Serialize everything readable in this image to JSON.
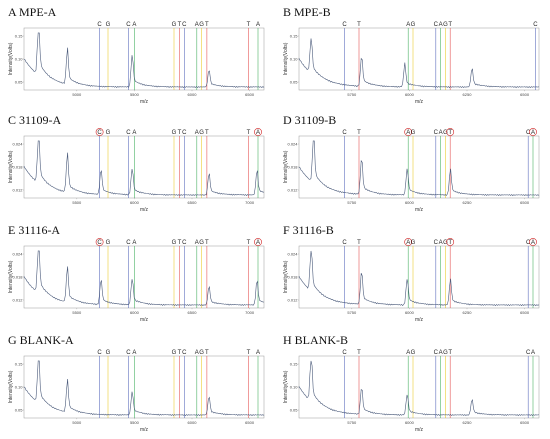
{
  "chart_data": [
    {
      "id": "A",
      "title": "A  MPE-A",
      "type": "line",
      "xlabel": "m/z",
      "ylabel": "Intensity(Volts)",
      "x_ticks": [
        "5000",
        "5500",
        "6000",
        "6500"
      ],
      "y_ticks": [
        "0.15",
        "0.10",
        "0.05"
      ],
      "markers": [
        {
          "label": "C",
          "x": 0.315,
          "color": "#3a4fb0"
        },
        {
          "label": "G",
          "x": 0.35,
          "color": "#e8c200"
        },
        {
          "label": "C",
          "x": 0.435,
          "color": "#3a4fb0"
        },
        {
          "label": "A",
          "x": 0.46,
          "color": "#20a040"
        },
        {
          "label": "G",
          "x": 0.625,
          "color": "#e8c200"
        },
        {
          "label": "T",
          "x": 0.648,
          "color": "#e03030"
        },
        {
          "label": "C",
          "x": 0.668,
          "color": "#3a4fb0"
        },
        {
          "label": "A",
          "x": 0.72,
          "color": "#20a040"
        },
        {
          "label": "G",
          "x": 0.74,
          "color": "#e8c200"
        },
        {
          "label": "T",
          "x": 0.762,
          "color": "#e03030"
        },
        {
          "label": "T",
          "x": 0.935,
          "color": "#e03030"
        },
        {
          "label": "A",
          "x": 0.975,
          "color": "#20a040"
        }
      ],
      "circled": [],
      "peaks": [
        {
          "x": 0.06,
          "h": 0.95
        },
        {
          "x": 0.18,
          "h": 0.55
        },
        {
          "x": 0.45,
          "h": 0.55
        },
        {
          "x": 0.77,
          "h": 0.28
        }
      ]
    },
    {
      "id": "B",
      "title": "B  MPE-B",
      "type": "line",
      "xlabel": "m/z",
      "ylabel": "Intensity(Volts)",
      "x_ticks": [
        "5750",
        "6000",
        "6250",
        "6500"
      ],
      "y_ticks": [
        "0.15",
        "0.10",
        "0.05"
      ],
      "markers": [
        {
          "label": "C",
          "x": 0.19,
          "color": "#3a4fb0"
        },
        {
          "label": "T",
          "x": 0.25,
          "color": "#e03030"
        },
        {
          "label": "A",
          "x": 0.455,
          "color": "#20a040"
        },
        {
          "label": "G",
          "x": 0.475,
          "color": "#e8c200"
        },
        {
          "label": "C",
          "x": 0.57,
          "color": "#3a4fb0"
        },
        {
          "label": "A",
          "x": 0.59,
          "color": "#20a040"
        },
        {
          "label": "G",
          "x": 0.61,
          "color": "#e8c200"
        },
        {
          "label": "T",
          "x": 0.63,
          "color": "#e03030"
        },
        {
          "label": "C",
          "x": 0.985,
          "color": "#3a4fb0"
        }
      ],
      "circled": [],
      "peaks": [
        {
          "x": 0.05,
          "h": 0.6
        },
        {
          "x": 0.26,
          "h": 0.5
        },
        {
          "x": 0.44,
          "h": 0.35
        },
        {
          "x": 0.72,
          "h": 0.3
        }
      ]
    },
    {
      "id": "C",
      "title": "C  31109-A",
      "type": "line",
      "xlabel": "m/z",
      "ylabel": "Intensity(Volts)",
      "x_ticks": [
        "5500",
        "6000",
        "6500",
        "7000"
      ],
      "y_ticks": [
        "0.024",
        "0.018",
        "0.012"
      ],
      "markers": [
        {
          "label": "C",
          "x": 0.315,
          "color": "#3a4fb0"
        },
        {
          "label": "G",
          "x": 0.35,
          "color": "#e8c200"
        },
        {
          "label": "C",
          "x": 0.435,
          "color": "#3a4fb0"
        },
        {
          "label": "A",
          "x": 0.46,
          "color": "#20a040"
        },
        {
          "label": "G",
          "x": 0.625,
          "color": "#e8c200"
        },
        {
          "label": "T",
          "x": 0.648,
          "color": "#e03030"
        },
        {
          "label": "C",
          "x": 0.668,
          "color": "#3a4fb0"
        },
        {
          "label": "A",
          "x": 0.72,
          "color": "#20a040"
        },
        {
          "label": "G",
          "x": 0.74,
          "color": "#e8c200"
        },
        {
          "label": "T",
          "x": 0.762,
          "color": "#e03030"
        },
        {
          "label": "T",
          "x": 0.935,
          "color": "#e03030"
        },
        {
          "label": "A",
          "x": 0.975,
          "color": "#20a040"
        }
      ],
      "circled": [
        0,
        11
      ],
      "peaks": [
        {
          "x": 0.06,
          "h": 0.85
        },
        {
          "x": 0.18,
          "h": 0.6
        },
        {
          "x": 0.32,
          "h": 0.4
        },
        {
          "x": 0.45,
          "h": 0.45
        },
        {
          "x": 0.77,
          "h": 0.35
        },
        {
          "x": 0.97,
          "h": 0.4
        }
      ]
    },
    {
      "id": "D",
      "title": "D  31109-B",
      "type": "line",
      "xlabel": "m/z",
      "ylabel": "Intensity(Volts)",
      "x_ticks": [
        "5750",
        "6000",
        "6250",
        "6500"
      ],
      "y_ticks": [
        "0.024",
        "0.018",
        "0.012"
      ],
      "markers": [
        {
          "label": "C",
          "x": 0.19,
          "color": "#3a4fb0"
        },
        {
          "label": "T",
          "x": 0.25,
          "color": "#e03030"
        },
        {
          "label": "A",
          "x": 0.455,
          "color": "#20a040"
        },
        {
          "label": "G",
          "x": 0.475,
          "color": "#e8c200"
        },
        {
          "label": "C",
          "x": 0.57,
          "color": "#3a4fb0"
        },
        {
          "label": "A",
          "x": 0.59,
          "color": "#20a040"
        },
        {
          "label": "G",
          "x": 0.61,
          "color": "#e8c200"
        },
        {
          "label": "T",
          "x": 0.63,
          "color": "#e03030"
        },
        {
          "label": "C",
          "x": 0.955,
          "color": "#3a4fb0"
        },
        {
          "label": "A",
          "x": 0.975,
          "color": "#20a040"
        }
      ],
      "circled": [
        2,
        7,
        9
      ],
      "peaks": [
        {
          "x": 0.06,
          "h": 0.8
        },
        {
          "x": 0.26,
          "h": 0.6
        },
        {
          "x": 0.45,
          "h": 0.45
        },
        {
          "x": 0.63,
          "h": 0.4
        }
      ]
    },
    {
      "id": "E",
      "title": "E  31116-A",
      "type": "line",
      "xlabel": "m/z",
      "ylabel": "Intensity(Volts)",
      "x_ticks": [
        "5500",
        "6000",
        "6500",
        "7000"
      ],
      "y_ticks": [
        "0.024",
        "0.018",
        "0.012"
      ],
      "markers": [
        {
          "label": "C",
          "x": 0.315,
          "color": "#3a4fb0"
        },
        {
          "label": "G",
          "x": 0.35,
          "color": "#e8c200"
        },
        {
          "label": "C",
          "x": 0.435,
          "color": "#3a4fb0"
        },
        {
          "label": "A",
          "x": 0.46,
          "color": "#20a040"
        },
        {
          "label": "G",
          "x": 0.625,
          "color": "#e8c200"
        },
        {
          "label": "T",
          "x": 0.648,
          "color": "#e03030"
        },
        {
          "label": "C",
          "x": 0.668,
          "color": "#3a4fb0"
        },
        {
          "label": "A",
          "x": 0.72,
          "color": "#20a040"
        },
        {
          "label": "G",
          "x": 0.74,
          "color": "#e8c200"
        },
        {
          "label": "T",
          "x": 0.762,
          "color": "#e03030"
        },
        {
          "label": "T",
          "x": 0.935,
          "color": "#e03030"
        },
        {
          "label": "A",
          "x": 0.975,
          "color": "#20a040"
        }
      ],
      "circled": [
        0,
        11
      ],
      "peaks": [
        {
          "x": 0.06,
          "h": 0.9
        },
        {
          "x": 0.18,
          "h": 0.55
        },
        {
          "x": 0.32,
          "h": 0.4
        },
        {
          "x": 0.45,
          "h": 0.45
        },
        {
          "x": 0.77,
          "h": 0.3
        },
        {
          "x": 0.97,
          "h": 0.4
        }
      ]
    },
    {
      "id": "F",
      "title": "F  31116-B",
      "type": "line",
      "xlabel": "m/z",
      "ylabel": "Intensity(Volts)",
      "x_ticks": [
        "5750",
        "6000",
        "6250",
        "6500"
      ],
      "y_ticks": [
        "0.024",
        "0.018",
        "0.012"
      ],
      "markers": [
        {
          "label": "C",
          "x": 0.19,
          "color": "#3a4fb0"
        },
        {
          "label": "T",
          "x": 0.25,
          "color": "#e03030"
        },
        {
          "label": "A",
          "x": 0.455,
          "color": "#20a040"
        },
        {
          "label": "G",
          "x": 0.475,
          "color": "#e8c200"
        },
        {
          "label": "C",
          "x": 0.57,
          "color": "#3a4fb0"
        },
        {
          "label": "A",
          "x": 0.59,
          "color": "#20a040"
        },
        {
          "label": "G",
          "x": 0.61,
          "color": "#e8c200"
        },
        {
          "label": "T",
          "x": 0.63,
          "color": "#e03030"
        },
        {
          "label": "C",
          "x": 0.955,
          "color": "#3a4fb0"
        },
        {
          "label": "A",
          "x": 0.975,
          "color": "#20a040"
        }
      ],
      "circled": [
        2,
        7,
        9
      ],
      "peaks": [
        {
          "x": 0.05,
          "h": 0.75
        },
        {
          "x": 0.26,
          "h": 0.55
        },
        {
          "x": 0.45,
          "h": 0.45
        },
        {
          "x": 0.63,
          "h": 0.4
        }
      ]
    },
    {
      "id": "G",
      "title": "G  BLANK-A",
      "type": "line",
      "xlabel": "m/z",
      "ylabel": "Intensity(Volts)",
      "x_ticks": [
        "5000",
        "5500",
        "6000",
        "6500"
      ],
      "y_ticks": [
        "0.15",
        "0.10",
        "0.05"
      ],
      "markers": [
        {
          "label": "C",
          "x": 0.315,
          "color": "#3a4fb0"
        },
        {
          "label": "G",
          "x": 0.35,
          "color": "#e8c200"
        },
        {
          "label": "C",
          "x": 0.435,
          "color": "#3a4fb0"
        },
        {
          "label": "A",
          "x": 0.46,
          "color": "#20a040"
        },
        {
          "label": "G",
          "x": 0.625,
          "color": "#e8c200"
        },
        {
          "label": "T",
          "x": 0.648,
          "color": "#e03030"
        },
        {
          "label": "C",
          "x": 0.668,
          "color": "#3a4fb0"
        },
        {
          "label": "A",
          "x": 0.72,
          "color": "#20a040"
        },
        {
          "label": "G",
          "x": 0.74,
          "color": "#e8c200"
        },
        {
          "label": "T",
          "x": 0.762,
          "color": "#e03030"
        },
        {
          "label": "T",
          "x": 0.935,
          "color": "#e03030"
        },
        {
          "label": "A",
          "x": 0.975,
          "color": "#20a040"
        }
      ],
      "circled": [],
      "peaks": [
        {
          "x": 0.06,
          "h": 0.8
        },
        {
          "x": 0.18,
          "h": 0.5
        },
        {
          "x": 0.45,
          "h": 0.4
        },
        {
          "x": 0.77,
          "h": 0.3
        }
      ]
    },
    {
      "id": "H",
      "title": "H  BLANK-B",
      "type": "line",
      "xlabel": "m/z",
      "ylabel": "Intensity(Volts)",
      "x_ticks": [
        "5750",
        "6000",
        "6250",
        "6500"
      ],
      "y_ticks": [
        "0.15",
        "0.10",
        "0.05"
      ],
      "markers": [
        {
          "label": "C",
          "x": 0.19,
          "color": "#3a4fb0"
        },
        {
          "label": "T",
          "x": 0.25,
          "color": "#e03030"
        },
        {
          "label": "A",
          "x": 0.455,
          "color": "#20a040"
        },
        {
          "label": "G",
          "x": 0.475,
          "color": "#e8c200"
        },
        {
          "label": "C",
          "x": 0.57,
          "color": "#3a4fb0"
        },
        {
          "label": "A",
          "x": 0.59,
          "color": "#20a040"
        },
        {
          "label": "G",
          "x": 0.61,
          "color": "#e8c200"
        },
        {
          "label": "T",
          "x": 0.63,
          "color": "#e03030"
        },
        {
          "label": "C",
          "x": 0.955,
          "color": "#3a4fb0"
        },
        {
          "label": "A",
          "x": 0.975,
          "color": "#20a040"
        }
      ],
      "circled": [],
      "peaks": [
        {
          "x": 0.05,
          "h": 0.8
        },
        {
          "x": 0.26,
          "h": 0.45
        },
        {
          "x": 0.45,
          "h": 0.35
        },
        {
          "x": 0.72,
          "h": 0.25
        }
      ]
    }
  ]
}
